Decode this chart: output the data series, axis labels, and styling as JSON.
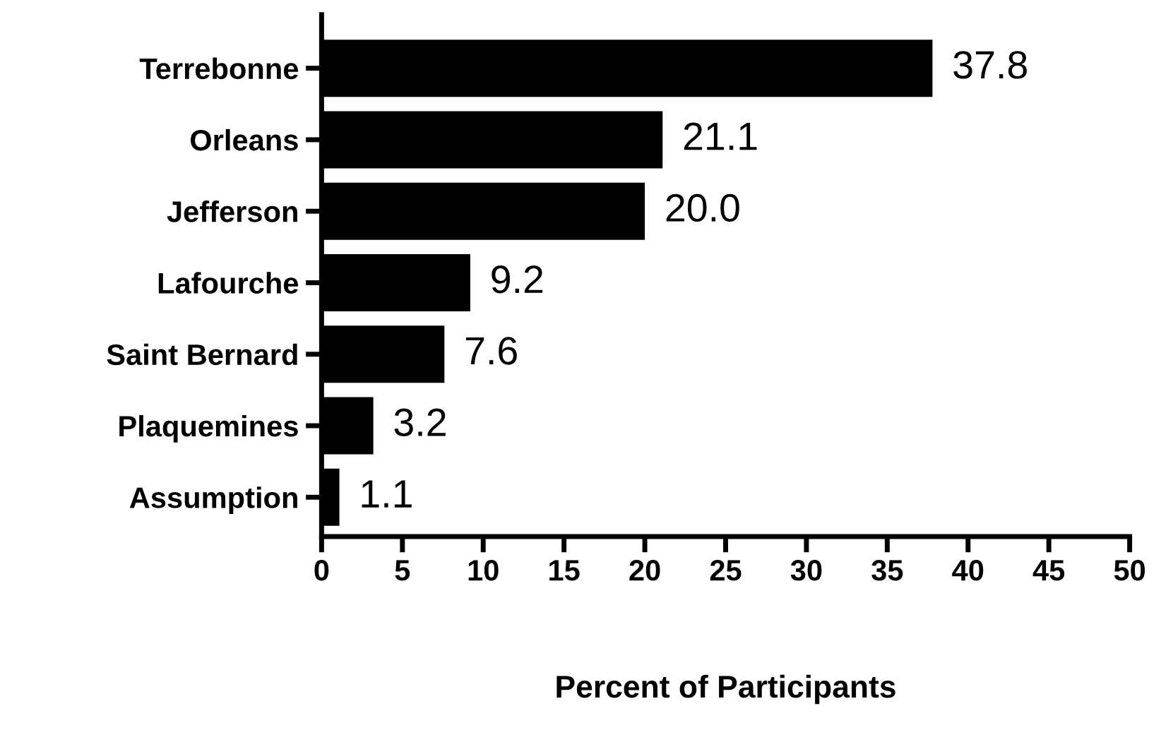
{
  "chart_data": {
    "type": "bar",
    "orientation": "horizontal",
    "xlabel": "Percent of Participants",
    "categories": [
      "Terrebonne",
      "Orleans",
      "Jefferson",
      "Lafourche",
      "Saint Bernard",
      "Plaquemines",
      "Assumption"
    ],
    "values": [
      37.8,
      21.1,
      20.0,
      9.2,
      7.6,
      3.2,
      1.1
    ],
    "color": "#000000",
    "xlim": [
      0,
      50
    ],
    "xticks": [
      0,
      5,
      10,
      15,
      20,
      25,
      30,
      35,
      40,
      45,
      50
    ],
    "value_labels": [
      "37.8",
      "21.1",
      "20.0",
      "9.2",
      "7.6",
      "3.2",
      "1.1"
    ],
    "grid": false,
    "legend": false
  }
}
